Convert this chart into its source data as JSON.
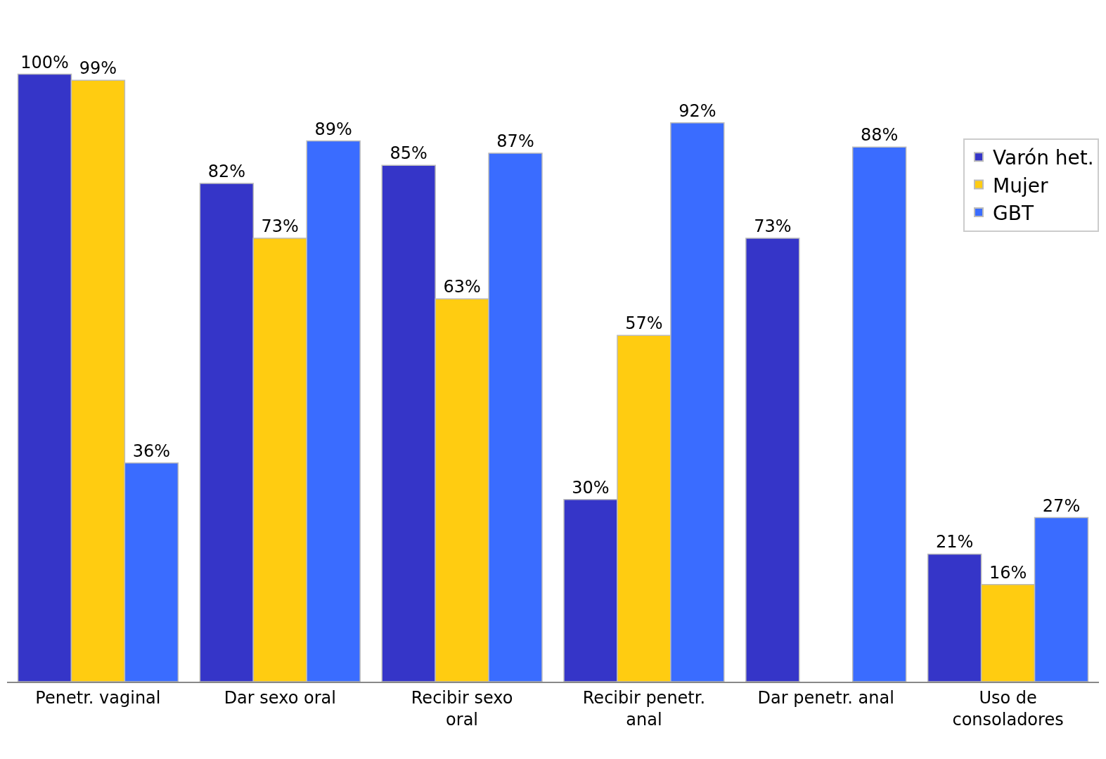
{
  "chart_data": {
    "type": "bar",
    "categories": [
      "Penetr. vaginal",
      "Dar sexo oral",
      "Recibir sexo oral",
      "Recibir penetr. anal",
      "Dar penetr. anal",
      "Uso de consoladores"
    ],
    "series": [
      {
        "name": "Varón het.",
        "color": "#3535c8",
        "values": [
          100,
          82,
          85,
          30,
          73,
          21
        ],
        "value_labels": [
          "100%",
          "82%",
          "85%",
          "30%",
          "73%",
          "21%"
        ]
      },
      {
        "name": "Mujer",
        "color": "#ffcc11",
        "values": [
          99,
          73,
          63,
          57,
          null,
          16
        ],
        "value_labels": [
          "99%",
          "73%",
          "63%",
          "57%",
          null,
          "16%"
        ]
      },
      {
        "name": "GBT",
        "color": "#3a6cff",
        "values": [
          36,
          89,
          87,
          92,
          88,
          27
        ],
        "value_labels": [
          "36%",
          "89%",
          "87%",
          "92%",
          "88%",
          "27%"
        ]
      }
    ],
    "legend": "top right"
  }
}
